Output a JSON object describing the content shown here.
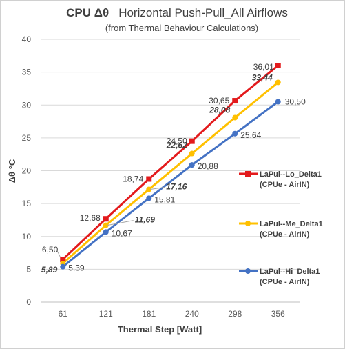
{
  "chart_data": {
    "type": "line",
    "title_main": "CPU  Δθ",
    "title_rest": "Horizontal  Push-Pull_All Airflows",
    "subtitle": "(from Thermal Behaviour Calculations)",
    "xlabel": "Thermal Step [Watt]",
    "ylabel": "Δθ °C",
    "categories": [
      "61",
      "121",
      "181",
      "240",
      "298",
      "356"
    ],
    "ylim": [
      0,
      40
    ],
    "yticks": [
      "0",
      "5",
      "10",
      "15",
      "20",
      "25",
      "30",
      "35",
      "40"
    ],
    "grid": true,
    "legend_position": "right",
    "series": [
      {
        "name": "LaPul--Lo_Delta1",
        "name_line2": "(CPUe - AirIN)",
        "color": "#e31a1c",
        "marker": "square",
        "values": [
          6.5,
          12.68,
          18.74,
          24.5,
          30.65,
          36.01
        ],
        "labels": [
          "6,50",
          "12,68",
          "18,74",
          "24,50",
          "30,65",
          "36,01"
        ]
      },
      {
        "name": "LaPul--Me_Delta1",
        "name_line2": "(CPUe - AirIN)",
        "color": "#ffc000",
        "marker": "circle",
        "values": [
          5.89,
          11.69,
          17.16,
          22.62,
          28.08,
          33.44
        ],
        "labels": [
          "5,89",
          "11,69",
          "17,16",
          "22,62",
          "28,08",
          "33,44"
        ]
      },
      {
        "name": "LaPul--Hi_Delta1",
        "name_line2": "(CPUe - AirIN)",
        "color": "#4472c4",
        "marker": "circle",
        "values": [
          5.39,
          10.67,
          15.81,
          20.88,
          25.64,
          30.5
        ],
        "labels": [
          "5,39",
          "10,67",
          "15,81",
          "20,88",
          "25,64",
          "30,50"
        ]
      }
    ]
  }
}
